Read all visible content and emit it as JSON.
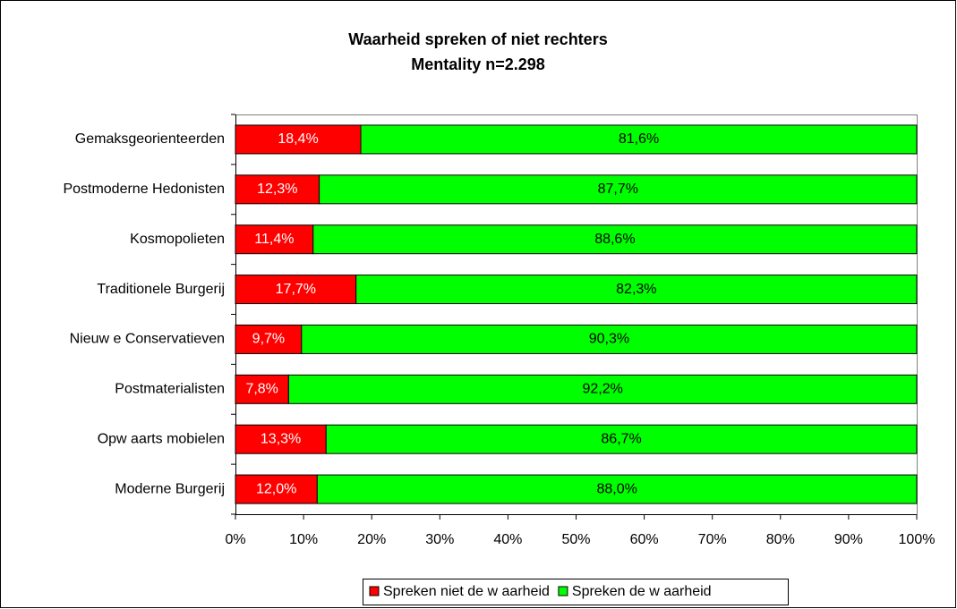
{
  "chart_data": {
    "type": "bar",
    "orientation": "horizontal",
    "stacked": true,
    "title": "Waarheid spreken of niet rechters",
    "subtitle": "Mentality n=2.298",
    "categories": [
      "Gemaksgeorienteerden",
      "Postmoderne Hedonisten",
      "Kosmopolieten",
      "Traditionele Burgerij",
      "Nieuw e Conservatieven",
      "Postmaterialisten",
      "Opw aarts mobielen",
      "Moderne Burgerij"
    ],
    "series": [
      {
        "name": "Spreken niet de w aarheid",
        "color": "#ff0000",
        "values": [
          18.4,
          12.3,
          11.4,
          17.7,
          9.7,
          7.8,
          13.3,
          12.0
        ],
        "value_labels": [
          "18,4%",
          "12,3%",
          "11,4%",
          "17,7%",
          "9,7%",
          "7,8%",
          "13,3%",
          "12,0%"
        ]
      },
      {
        "name": "Spreken de w aarheid",
        "color": "#00ff00",
        "values": [
          81.6,
          87.7,
          88.6,
          82.3,
          90.3,
          92.2,
          86.7,
          88.0
        ],
        "value_labels": [
          "81,6%",
          "87,7%",
          "88,6%",
          "82,3%",
          "90,3%",
          "92,2%",
          "86,7%",
          "88,0%"
        ]
      }
    ],
    "xlim": [
      0,
      100
    ],
    "xticks": [
      {
        "value": 0,
        "label": "0%"
      },
      {
        "value": 10,
        "label": "10%"
      },
      {
        "value": 20,
        "label": "20%"
      },
      {
        "value": 30,
        "label": "30%"
      },
      {
        "value": 40,
        "label": "40%"
      },
      {
        "value": 50,
        "label": "50%"
      },
      {
        "value": 60,
        "label": "60%"
      },
      {
        "value": 70,
        "label": "70%"
      },
      {
        "value": 80,
        "label": "80%"
      },
      {
        "value": 90,
        "label": "90%"
      },
      {
        "value": 100,
        "label": "100%"
      }
    ],
    "legend": "bottom"
  }
}
